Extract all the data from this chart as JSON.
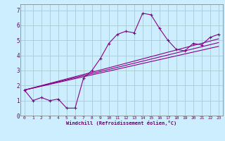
{
  "xlabel": "Windchill (Refroidissement éolien,°C)",
  "bg_color": "#cceeff",
  "grid_color": "#aacccc",
  "line_color": "#880088",
  "xlim": [
    -0.5,
    23.5
  ],
  "ylim": [
    0,
    7.4
  ],
  "xticks": [
    0,
    1,
    2,
    3,
    4,
    5,
    6,
    7,
    8,
    9,
    10,
    11,
    12,
    13,
    14,
    15,
    16,
    17,
    18,
    19,
    20,
    21,
    22,
    23
  ],
  "yticks": [
    0,
    1,
    2,
    3,
    4,
    5,
    6,
    7
  ],
  "curve1_x": [
    0,
    1,
    2,
    3,
    4,
    5,
    6,
    7,
    8,
    9,
    10,
    11,
    12,
    13,
    14,
    15,
    16,
    17,
    18,
    19,
    20,
    21,
    22,
    23
  ],
  "curve1_y": [
    1.7,
    1.0,
    1.2,
    1.0,
    1.1,
    0.5,
    0.5,
    2.5,
    3.0,
    3.8,
    4.8,
    5.4,
    5.6,
    5.5,
    6.8,
    6.7,
    5.8,
    5.0,
    4.4,
    4.3,
    4.8,
    4.7,
    5.2,
    5.4
  ],
  "line1_x": [
    0,
    23
  ],
  "line1_y": [
    1.7,
    4.6
  ],
  "line2_x": [
    0,
    23
  ],
  "line2_y": [
    1.7,
    4.85
  ],
  "line3_x": [
    0,
    23
  ],
  "line3_y": [
    1.7,
    5.1
  ]
}
